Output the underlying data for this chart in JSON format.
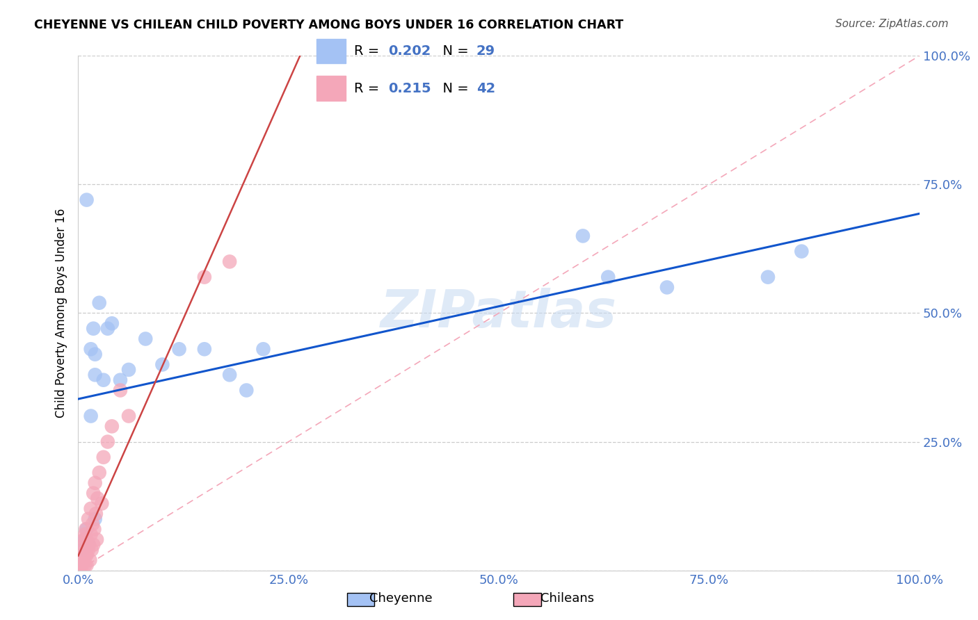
{
  "title": "CHEYENNE VS CHILEAN CHILD POVERTY AMONG BOYS UNDER 16 CORRELATION CHART",
  "source": "Source: ZipAtlas.com",
  "ylabel": "Child Poverty Among Boys Under 16",
  "cheyenne_color": "#a4c2f4",
  "chilean_color": "#f4a7b9",
  "cheyenne_line_color": "#1155cc",
  "chilean_line_color": "#cc4444",
  "R_cheyenne": "0.202",
  "N_cheyenne": "29",
  "R_chilean": "0.215",
  "N_chilean": "42",
  "watermark": "ZIPatlas",
  "bg_color": "#ffffff",
  "grid_color": "#cccccc",
  "tick_color": "#4472c4",
  "diag_color": "#f4a7b9",
  "cheyenne_x": [
    0.005,
    0.008,
    0.01,
    0.012,
    0.015,
    0.015,
    0.018,
    0.02,
    0.02,
    0.025,
    0.03,
    0.035,
    0.04,
    0.05,
    0.06,
    0.08,
    0.1,
    0.12,
    0.15,
    0.18,
    0.2,
    0.22,
    0.6,
    0.63,
    0.7,
    0.82,
    0.86,
    0.01,
    0.02
  ],
  "cheyenne_y": [
    0.04,
    0.06,
    0.08,
    0.05,
    0.3,
    0.43,
    0.47,
    0.42,
    0.1,
    0.52,
    0.37,
    0.47,
    0.48,
    0.37,
    0.39,
    0.45,
    0.4,
    0.43,
    0.43,
    0.38,
    0.35,
    0.43,
    0.65,
    0.57,
    0.55,
    0.57,
    0.62,
    0.72,
    0.38
  ],
  "chilean_x": [
    0.001,
    0.002,
    0.003,
    0.003,
    0.004,
    0.005,
    0.005,
    0.006,
    0.006,
    0.007,
    0.007,
    0.008,
    0.008,
    0.009,
    0.009,
    0.01,
    0.01,
    0.01,
    0.012,
    0.012,
    0.013,
    0.014,
    0.015,
    0.015,
    0.016,
    0.017,
    0.018,
    0.018,
    0.019,
    0.02,
    0.021,
    0.022,
    0.023,
    0.025,
    0.028,
    0.03,
    0.035,
    0.04,
    0.05,
    0.06,
    0.15,
    0.18
  ],
  "chilean_y": [
    0.01,
    0.02,
    0.01,
    0.03,
    0.02,
    0.01,
    0.04,
    0.02,
    0.05,
    0.02,
    0.06,
    0.01,
    0.07,
    0.03,
    0.08,
    0.01,
    0.03,
    0.06,
    0.04,
    0.1,
    0.05,
    0.02,
    0.07,
    0.12,
    0.04,
    0.09,
    0.05,
    0.15,
    0.08,
    0.17,
    0.11,
    0.06,
    0.14,
    0.19,
    0.13,
    0.22,
    0.25,
    0.28,
    0.35,
    0.3,
    0.57,
    0.6
  ],
  "xlim": [
    0,
    1.0
  ],
  "ylim": [
    0,
    1.0
  ],
  "xticks": [
    0,
    0.25,
    0.5,
    0.75,
    1.0
  ],
  "yticks": [
    0,
    0.25,
    0.5,
    0.75,
    1.0
  ],
  "xtick_labels": [
    "0.0%",
    "25.0%",
    "50.0%",
    "75.0%",
    "100.0%"
  ],
  "ytick_labels_right": [
    "",
    "25.0%",
    "50.0%",
    "75.0%",
    "100.0%"
  ]
}
